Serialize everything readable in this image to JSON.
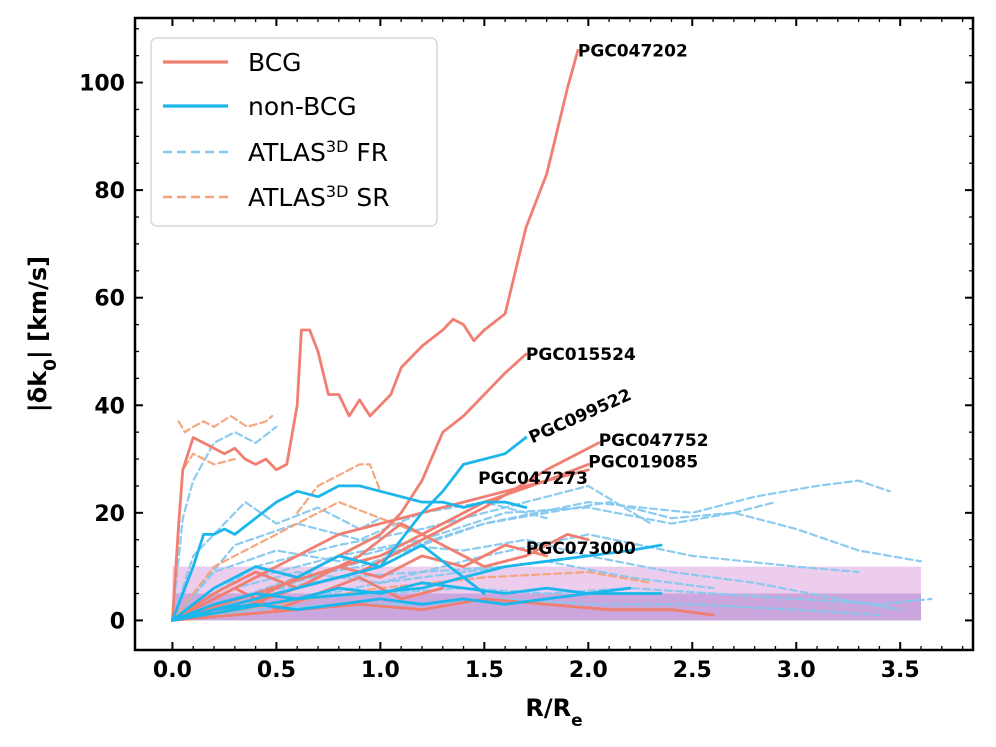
{
  "chart_data": {
    "type": "line",
    "xlabel": "R/R",
    "xlabel_sub": "e",
    "ylabel_pre": "|δk",
    "ylabel_sub": "0",
    "ylabel_post": "| [km/s]",
    "xlim": [
      -0.18,
      3.85
    ],
    "ylim": [
      -5.5,
      112
    ],
    "xticks": [
      0.0,
      0.5,
      1.0,
      1.5,
      2.0,
      2.5,
      3.0,
      3.5
    ],
    "xtick_labels": [
      "0.0",
      "0.5",
      "1.0",
      "1.5",
      "2.0",
      "2.5",
      "3.0",
      "3.5"
    ],
    "yticks": [
      0,
      20,
      40,
      60,
      80,
      100
    ],
    "ytick_labels": [
      "0",
      "20",
      "40",
      "60",
      "80",
      "100"
    ],
    "legend": {
      "position": "top-left",
      "entries": [
        {
          "label": "BCG",
          "style": "solid",
          "color": "#f07f72"
        },
        {
          "label": "non-BCG",
          "style": "solid",
          "color": "#1ab6ec"
        },
        {
          "label": "ATLAS",
          "sup": "3D",
          "suffix": " FR",
          "style": "dashed",
          "color": "#86c8ef"
        },
        {
          "label": "ATLAS",
          "sup": "3D",
          "suffix": " SR",
          "style": "dashed",
          "color": "#f5a27a"
        }
      ]
    },
    "bands": [
      {
        "x0": 0.0,
        "x1": 3.6,
        "y0": 0,
        "y1": 10,
        "color": "#d890d8",
        "opacity": 0.45
      },
      {
        "x0": 0.0,
        "x1": 3.6,
        "y0": 0,
        "y1": 5,
        "color": "#9060c0",
        "opacity": 0.35
      }
    ],
    "annotations": [
      {
        "text": "PGC047202",
        "x": 1.95,
        "y": 106,
        "rotate": 0
      },
      {
        "text": "PGC015524",
        "x": 1.7,
        "y": 49.5,
        "rotate": 0
      },
      {
        "text": "PGC099522",
        "x": 1.73,
        "y": 34,
        "rotate": -24
      },
      {
        "text": "PGC047752",
        "x": 2.05,
        "y": 33.5,
        "rotate": 0
      },
      {
        "text": "PGC019085",
        "x": 2.0,
        "y": 29.5,
        "rotate": 0
      },
      {
        "text": "PGC047273",
        "x": 1.47,
        "y": 26.5,
        "rotate": 0
      },
      {
        "text": "PGC073000",
        "x": 1.7,
        "y": 13.5,
        "rotate": 0
      }
    ],
    "series": [
      {
        "name": "ATLAS3D FR a",
        "group": "fr",
        "x": [
          0,
          0.05,
          0.1,
          0.2,
          0.3,
          0.4,
          0.5
        ],
        "y": [
          0,
          19,
          26,
          33,
          35,
          33,
          36
        ]
      },
      {
        "name": "ATLAS3D FR b",
        "group": "fr",
        "x": [
          0,
          0.1,
          0.2,
          0.35,
          0.5,
          0.7,
          0.9,
          1.0
        ],
        "y": [
          0,
          12,
          16,
          22,
          18,
          21,
          17,
          19
        ]
      },
      {
        "name": "ATLAS3D FR c",
        "group": "fr",
        "x": [
          0,
          0.3,
          0.6,
          0.9,
          1.2,
          1.5,
          1.8,
          2.1,
          2.4,
          2.7,
          3.0,
          3.3,
          3.6
        ],
        "y": [
          0,
          4,
          8,
          10,
          14,
          18,
          20,
          22,
          19,
          20,
          17,
          13,
          11
        ]
      },
      {
        "name": "ATLAS3D FR d",
        "group": "fr",
        "x": [
          0,
          0.5,
          1.0,
          1.5,
          2.0,
          2.5,
          2.8,
          3.1,
          3.3,
          3.45
        ],
        "y": [
          0,
          6,
          12,
          18,
          22,
          20,
          23,
          25,
          26,
          24
        ]
      },
      {
        "name": "ATLAS3D FR e",
        "group": "fr",
        "x": [
          0,
          0.4,
          0.8,
          1.2,
          1.6,
          2.0,
          2.4,
          2.7,
          2.9
        ],
        "y": [
          0,
          8,
          12,
          15,
          20,
          21,
          18,
          20,
          22
        ]
      },
      {
        "name": "ATLAS3D FR f",
        "group": "fr",
        "x": [
          0,
          0.5,
          1.0,
          1.5,
          2.0,
          2.5,
          3.0,
          3.3
        ],
        "y": [
          0,
          3,
          7,
          12,
          16,
          12,
          10,
          9
        ]
      },
      {
        "name": "ATLAS3D FR g",
        "group": "fr",
        "x": [
          0,
          0.4,
          0.8,
          1.2,
          1.6,
          2.0,
          2.3
        ],
        "y": [
          0,
          10,
          14,
          17,
          21,
          25,
          18
        ]
      },
      {
        "name": "ATLAS3D FR h",
        "group": "fr",
        "x": [
          0,
          0.3,
          0.6,
          1.0,
          1.4,
          1.8,
          2.2,
          2.6,
          3.0,
          3.4,
          3.65
        ],
        "y": [
          0,
          2,
          4,
          5,
          6,
          5,
          6,
          5,
          4,
          3,
          4
        ]
      },
      {
        "name": "ATLAS3D FR i",
        "group": "fr",
        "x": [
          0,
          0.4,
          0.8,
          1.2,
          1.6,
          2.0,
          2.4,
          2.8,
          3.2,
          3.5
        ],
        "y": [
          0,
          5,
          8,
          9,
          10,
          12,
          9,
          7,
          4,
          2
        ]
      },
      {
        "name": "ATLAS3D FR j",
        "group": "fr",
        "x": [
          0,
          0.3,
          0.6,
          0.9,
          1.2,
          1.5,
          1.8
        ],
        "y": [
          0,
          14,
          18,
          15,
          20,
          22,
          19
        ]
      },
      {
        "name": "ATLAS3D FR k",
        "group": "fr",
        "x": [
          0,
          0.3,
          0.6,
          1.0,
          1.4,
          1.8,
          2.2,
          2.6
        ],
        "y": [
          0,
          6,
          9,
          7,
          9,
          11,
          8,
          6
        ]
      },
      {
        "name": "ATLAS3D FR l",
        "group": "fr",
        "x": [
          0,
          0.4,
          0.8,
          1.2,
          1.6,
          2.0,
          2.5,
          3.0,
          3.4
        ],
        "y": [
          0,
          2,
          3,
          3,
          4,
          3,
          3,
          2,
          1
        ]
      },
      {
        "name": "ATLAS3D FR m",
        "group": "fr",
        "x": [
          0,
          0.2,
          0.5,
          0.8,
          1.1,
          1.4,
          1.7,
          2.0
        ],
        "y": [
          0,
          9,
          13,
          11,
          14,
          13,
          15,
          12
        ]
      },
      {
        "name": "ATLAS3D SR a",
        "group": "sr",
        "x": [
          0.03,
          0.06,
          0.1,
          0.15,
          0.2,
          0.28,
          0.36,
          0.45,
          0.48
        ],
        "y": [
          37,
          35,
          36,
          37,
          36,
          38,
          36,
          37,
          38
        ]
      },
      {
        "name": "ATLAS3D SR b",
        "group": "sr",
        "x": [
          0,
          0.05,
          0.1,
          0.2,
          0.3
        ],
        "y": [
          0,
          28,
          31,
          29,
          30
        ]
      },
      {
        "name": "ATLAS3D SR c",
        "group": "sr",
        "x": [
          0.6,
          0.7,
          0.8,
          0.9,
          0.95,
          1.0
        ],
        "y": [
          20,
          25,
          27,
          29,
          29,
          24
        ]
      },
      {
        "name": "ATLAS3D SR d",
        "group": "sr",
        "x": [
          0,
          0.2,
          0.4,
          0.6,
          0.8,
          1.0,
          1.2
        ],
        "y": [
          0,
          10,
          14,
          18,
          22,
          19,
          16
        ]
      },
      {
        "name": "ATLAS3D SR e",
        "group": "sr",
        "x": [
          0,
          0.5,
          1.0,
          1.5,
          2.0,
          2.3
        ],
        "y": [
          0,
          3,
          6,
          8,
          9,
          7
        ]
      },
      {
        "name": "PGC047202",
        "group": "bcg",
        "x": [
          0.0,
          0.03,
          0.05,
          0.1,
          0.15,
          0.2,
          0.25,
          0.3,
          0.35,
          0.4,
          0.45,
          0.5,
          0.55,
          0.6,
          0.62,
          0.66,
          0.7,
          0.75,
          0.8,
          0.85,
          0.9,
          0.95,
          1.0,
          1.05,
          1.1,
          1.2,
          1.3,
          1.35,
          1.4,
          1.45,
          1.5,
          1.6,
          1.7,
          1.8,
          1.9,
          1.95
        ],
        "y": [
          0,
          18,
          28,
          34,
          33,
          32,
          31,
          32,
          30,
          29,
          30,
          28,
          29,
          40,
          54,
          54,
          50,
          42,
          42,
          38,
          41,
          38,
          40,
          42,
          47,
          51,
          54,
          56,
          55,
          52,
          54,
          57,
          73,
          83,
          99,
          106
        ]
      },
      {
        "name": "PGC015524",
        "group": "bcg",
        "x": [
          0.0,
          0.2,
          0.4,
          0.6,
          0.8,
          1.0,
          1.1,
          1.2,
          1.3,
          1.4,
          1.5,
          1.6,
          1.7
        ],
        "y": [
          0,
          2,
          4,
          8,
          12,
          16,
          20,
          26,
          35,
          38,
          42,
          46,
          49.5
        ]
      },
      {
        "name": "PGC047752",
        "group": "bcg",
        "x": [
          0.0,
          0.3,
          0.6,
          0.9,
          1.2,
          1.5,
          1.8,
          2.0,
          2.05
        ],
        "y": [
          0,
          3,
          6,
          9,
          15,
          21,
          28,
          32,
          33
        ]
      },
      {
        "name": "PGC019085",
        "group": "bcg",
        "x": [
          0.0,
          0.4,
          0.8,
          1.0,
          1.2,
          1.5,
          1.8,
          2.0
        ],
        "y": [
          0,
          5,
          10,
          12,
          16,
          22,
          26,
          29
        ]
      },
      {
        "name": "BCG a",
        "group": "bcg",
        "x": [
          0.0,
          0.2,
          0.4,
          0.6,
          0.8,
          1.0,
          1.2,
          1.4,
          1.6,
          1.8,
          2.0
        ],
        "y": [
          0,
          4,
          8,
          12,
          16,
          18,
          20,
          22,
          24,
          26,
          28
        ]
      },
      {
        "name": "BCG b",
        "group": "bcg",
        "x": [
          0.0,
          0.3,
          0.6,
          0.9,
          1.1,
          1.3,
          1.5,
          1.7,
          1.9,
          2.0
        ],
        "y": [
          0,
          2,
          6,
          12,
          18,
          14,
          10,
          12,
          16,
          15
        ]
      },
      {
        "name": "BCG c",
        "group": "bcg",
        "x": [
          0.0,
          0.3,
          0.6,
          0.9,
          1.2,
          1.5,
          1.8,
          2.1,
          2.4,
          2.6
        ],
        "y": [
          0,
          1,
          2,
          3,
          2,
          4,
          3,
          2,
          2,
          1
        ]
      },
      {
        "name": "BCG d",
        "group": "bcg",
        "x": [
          0.0,
          0.2,
          0.4,
          0.6,
          0.8,
          1.0,
          1.2,
          1.4,
          1.6,
          1.8
        ],
        "y": [
          0,
          5,
          9,
          6,
          10,
          8,
          12,
          10,
          14,
          12
        ]
      },
      {
        "name": "BCG e",
        "group": "bcg",
        "x": [
          0.0,
          0.15,
          0.3,
          0.5,
          0.7,
          0.9,
          1.1,
          1.3
        ],
        "y": [
          0,
          3,
          6,
          2,
          5,
          8,
          4,
          6
        ]
      },
      {
        "name": "PGC047273",
        "group": "nonbcg",
        "x": [
          0.0,
          0.1,
          0.15,
          0.2,
          0.25,
          0.3,
          0.4,
          0.5,
          0.6,
          0.7,
          0.8,
          0.9,
          1.0,
          1.1,
          1.2,
          1.3,
          1.4,
          1.5,
          1.6,
          1.7
        ],
        "y": [
          0,
          10,
          16,
          16,
          17,
          16,
          19,
          22,
          24,
          23,
          25,
          25,
          24,
          23,
          22,
          22,
          21,
          22,
          22,
          21
        ]
      },
      {
        "name": "PGC099522",
        "group": "nonbcg",
        "x": [
          0.0,
          0.3,
          0.6,
          0.8,
          1.0,
          1.1,
          1.2,
          1.3,
          1.4,
          1.5,
          1.6,
          1.7
        ],
        "y": [
          0,
          3,
          6,
          8,
          10,
          15,
          20,
          24,
          29,
          30,
          31,
          34
        ]
      },
      {
        "name": "PGC073000",
        "group": "nonbcg",
        "x": [
          0.0,
          0.3,
          0.6,
          0.9,
          1.2,
          1.4,
          1.6,
          1.8,
          2.0,
          2.2,
          2.35
        ],
        "y": [
          0,
          2,
          4,
          5,
          6,
          8,
          10,
          11,
          12,
          13,
          14
        ]
      },
      {
        "name": "non-BCG a",
        "group": "nonbcg",
        "x": [
          0.0,
          0.2,
          0.4,
          0.6,
          0.8,
          1.0,
          1.2,
          1.4,
          1.6,
          1.8,
          2.0,
          2.2
        ],
        "y": [
          0,
          3,
          5,
          4,
          6,
          5,
          7,
          6,
          5,
          6,
          5,
          6
        ]
      },
      {
        "name": "non-BCG b",
        "group": "nonbcg",
        "x": [
          0.0,
          0.2,
          0.4,
          0.6,
          0.8,
          1.0,
          1.2,
          1.4,
          1.6,
          1.8,
          2.0,
          2.35
        ],
        "y": [
          0,
          2,
          3,
          2,
          3,
          4,
          3,
          4,
          3,
          4,
          5,
          5
        ]
      },
      {
        "name": "non-BCG c",
        "group": "nonbcg",
        "x": [
          0.0,
          0.2,
          0.4,
          0.6,
          0.8,
          1.0,
          1.2,
          1.4,
          1.5
        ],
        "y": [
          0,
          6,
          10,
          8,
          12,
          10,
          14,
          8,
          5
        ]
      }
    ]
  }
}
